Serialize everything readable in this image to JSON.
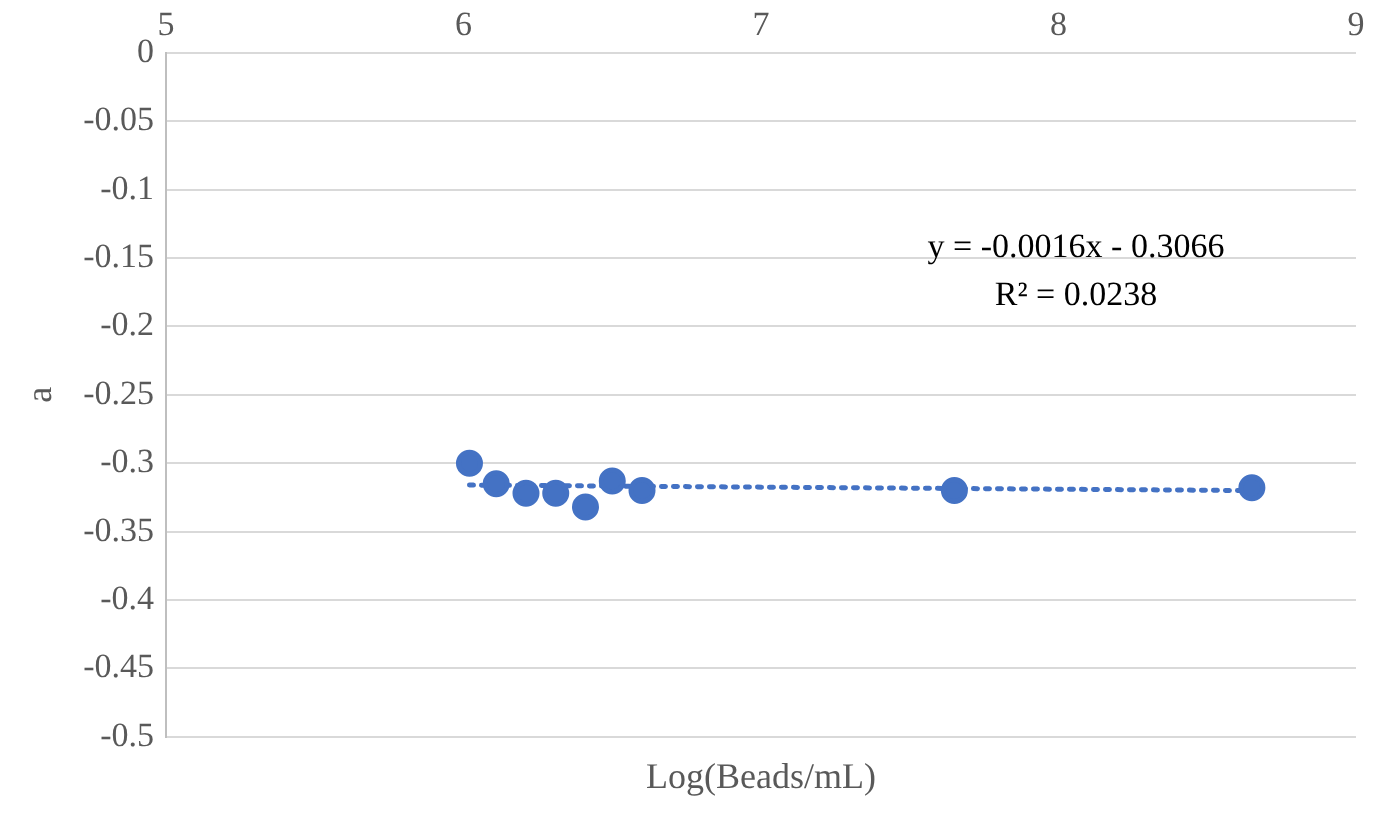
{
  "chart_data": {
    "type": "scatter",
    "xlabel": "Log(Beads/mL)",
    "ylabel": "a",
    "xlim": [
      5,
      9
    ],
    "xticks": [
      5,
      6,
      7,
      8,
      9
    ],
    "ylim": [
      -0.5,
      0
    ],
    "yticks": [
      0,
      -0.05,
      -0.1,
      -0.15,
      -0.2,
      -0.25,
      -0.3,
      -0.35,
      -0.4,
      -0.45,
      -0.5
    ],
    "grid": "y",
    "legend": false,
    "marker": "circle",
    "series": [
      {
        "type": "scatter",
        "color": "#4472c4",
        "x": [
          6.02,
          6.11,
          6.21,
          6.31,
          6.41,
          6.5,
          6.6,
          7.65,
          8.65
        ],
        "values": [
          -0.3,
          -0.315,
          -0.322,
          -0.322,
          -0.332,
          -0.313,
          -0.32,
          -0.32,
          -0.318
        ]
      },
      {
        "type": "line",
        "color": "#4472c4",
        "line_style": "dotted",
        "marker": "none",
        "x": [
          6.02,
          8.65
        ],
        "values": [
          -0.316,
          -0.32
        ]
      }
    ],
    "annotations": [
      "y = -0.0016x - 0.3066",
      "R² = 0.0238"
    ]
  }
}
